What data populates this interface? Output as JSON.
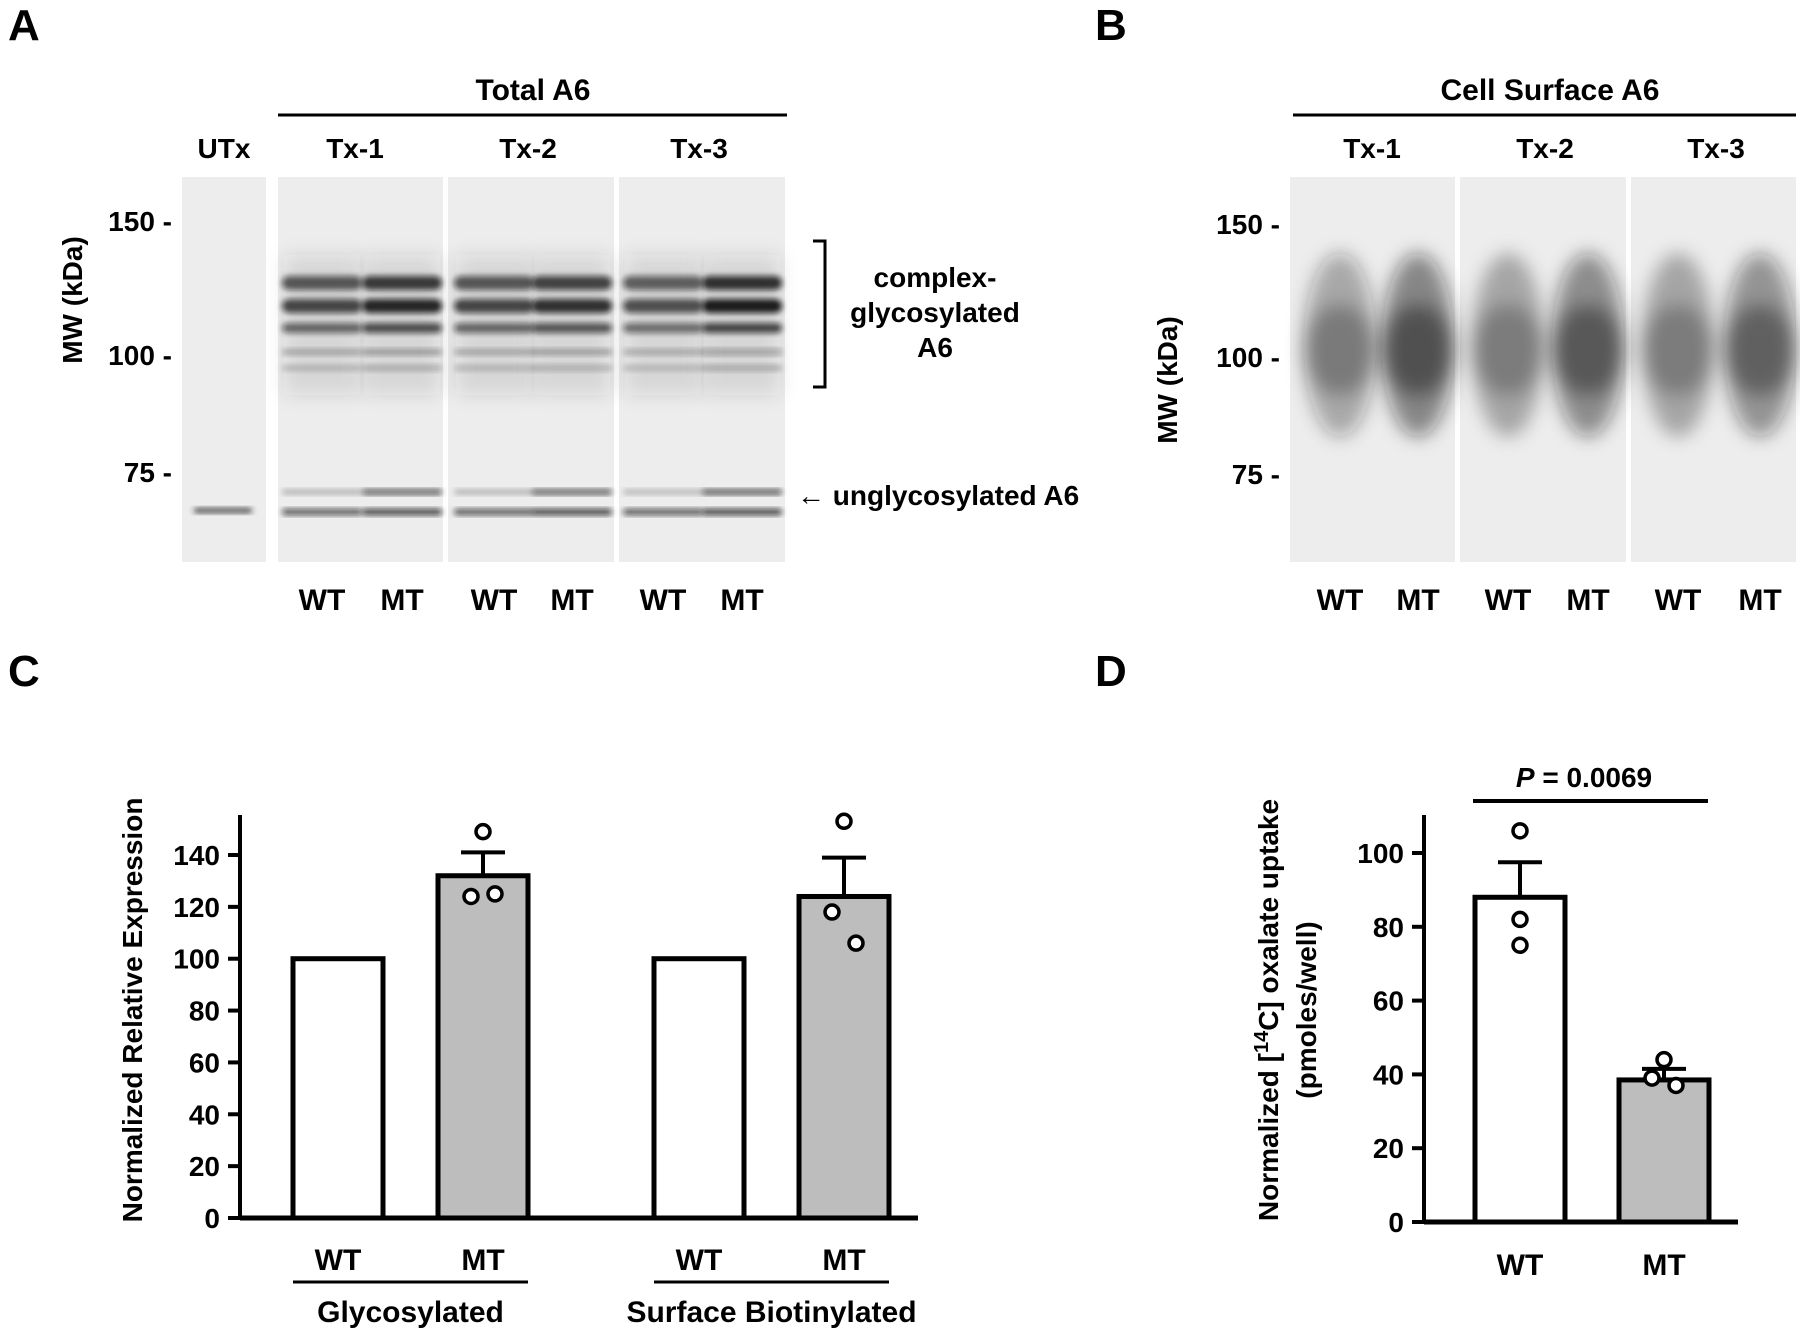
{
  "panels": {
    "A": {
      "letter": "A",
      "title": "Total A6",
      "untransfected_label": "UTx",
      "groups": [
        "Tx-1",
        "Tx-2",
        "Tx-3"
      ],
      "lane_labels": [
        "WT",
        "MT"
      ],
      "ylabel": "MW (kDa)",
      "mw_ticks": [
        "150 -",
        "100 -",
        "75 -"
      ],
      "annotation_complex": [
        "complex-",
        "glycosylated",
        "A6"
      ],
      "annotation_unglyc": "← unglycosylated A6"
    },
    "B": {
      "letter": "B",
      "title": "Cell Surface A6",
      "groups": [
        "Tx-1",
        "Tx-2",
        "Tx-3"
      ],
      "lane_labels": [
        "WT",
        "MT"
      ],
      "ylabel": "MW (kDa)",
      "mw_ticks": [
        "150 -",
        "100 -",
        "75 -"
      ]
    },
    "C": {
      "letter": "C"
    },
    "D": {
      "letter": "D"
    }
  },
  "chart_data": [
    {
      "panel": "C",
      "type": "bar",
      "ylabel": "Normalized Relative Expression",
      "ylim": [
        0,
        150
      ],
      "yticks": [
        0,
        20,
        40,
        60,
        80,
        100,
        120,
        140
      ],
      "groups": [
        {
          "name": "Glycosylated",
          "bars": [
            {
              "label": "WT",
              "value": 100,
              "color": "#ffffff",
              "sem": 0,
              "points": []
            },
            {
              "label": "MT",
              "value": 132,
              "color": "#bdbdbd",
              "sem": 9,
              "points": [
                149,
                124,
                125
              ]
            }
          ]
        },
        {
          "name": "Surface Biotinylated",
          "bars": [
            {
              "label": "WT",
              "value": 100,
              "color": "#ffffff",
              "sem": 0,
              "points": []
            },
            {
              "label": "MT",
              "value": 124,
              "color": "#bdbdbd",
              "sem": 15,
              "points": [
                153,
                118,
                106
              ]
            }
          ]
        }
      ]
    },
    {
      "panel": "D",
      "type": "bar",
      "ylabel_line1": "Normalized [",
      "ylabel_sup": "14",
      "ylabel_line1_rest": "C] oxalate uptake",
      "ylabel_line2": "(pmoles/well)",
      "ylim": [
        0,
        110
      ],
      "yticks": [
        0,
        20,
        40,
        60,
        80,
        100
      ],
      "pvalue_label": "P",
      "pvalue_text": " = 0.0069",
      "bars": [
        {
          "label": "WT",
          "value": 88,
          "color": "#ffffff",
          "sem": 9.5,
          "points": [
            106,
            82,
            75
          ]
        },
        {
          "label": "MT",
          "value": 38.5,
          "color": "#bdbdbd",
          "sem": 3,
          "points": [
            44,
            39,
            37
          ]
        }
      ]
    }
  ]
}
